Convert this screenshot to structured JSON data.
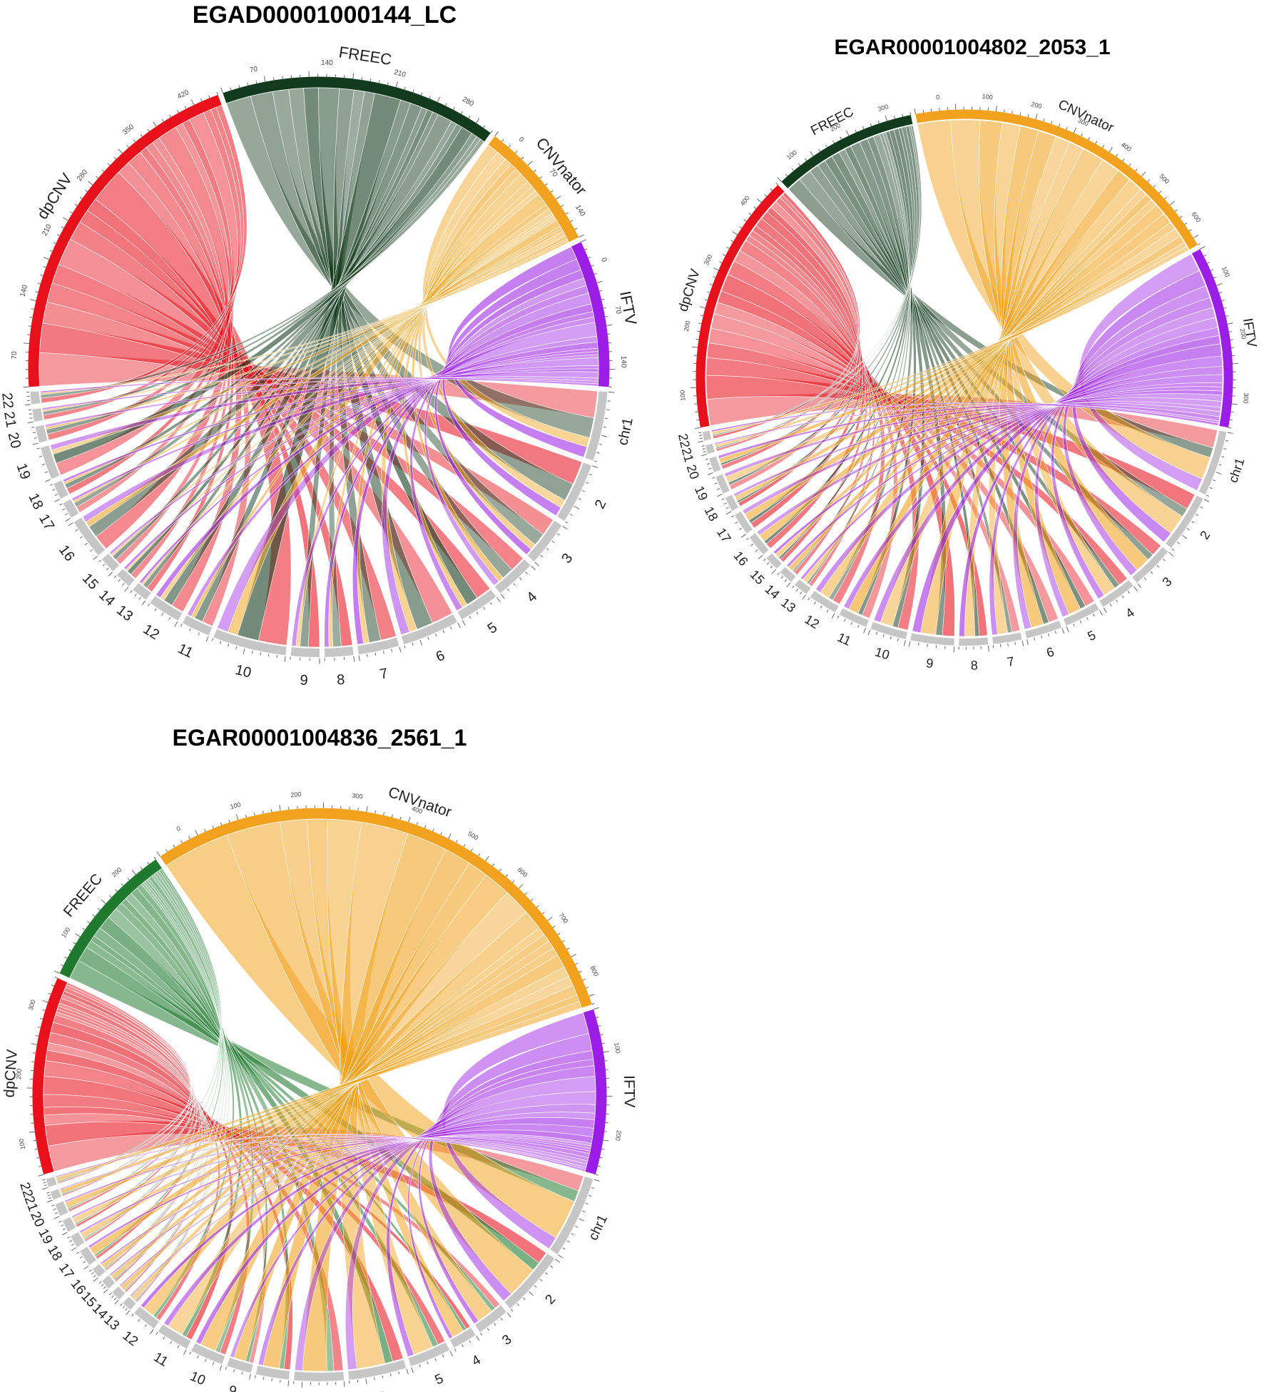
{
  "colors": {
    "dpCNV": "#e8101a",
    "FREEC": "#123a1c",
    "FREEC_light": "#1f7a2e",
    "CNVnator": "#f2a21c",
    "IFTV": "#9a1ee6",
    "chrom": "#c6c6c6"
  },
  "panels": [
    {
      "title": "EGAD00001000144_LC",
      "freec_shade": "dark",
      "tools": [
        {
          "name": "dpCNV",
          "size": 45
        },
        {
          "name": "FREEC",
          "size": 34
        },
        {
          "name": "CNVnator",
          "size": 16
        },
        {
          "name": "IFTV",
          "size": 18
        }
      ],
      "tool_ticks": [
        {
          "tool": "dpCNV",
          "labels": [
            "70",
            "140",
            "210",
            "280",
            "350",
            "420"
          ]
        },
        {
          "tool": "FREEC",
          "labels": [
            "70",
            "140",
            "210",
            "280"
          ]
        },
        {
          "tool": "CNVnator",
          "labels": [
            "0",
            "70",
            "140"
          ]
        },
        {
          "tool": "IFTV",
          "labels": [
            "0",
            "70",
            "140"
          ]
        }
      ],
      "chromosomes": [
        {
          "label": "chr1",
          "size": 8.5
        },
        {
          "label": "2",
          "size": 7.5
        },
        {
          "label": "3",
          "size": 5.5
        },
        {
          "label": "4",
          "size": 5
        },
        {
          "label": "5",
          "size": 5
        },
        {
          "label": "6",
          "size": 7
        },
        {
          "label": "7",
          "size": 5
        },
        {
          "label": "8",
          "size": 3.5
        },
        {
          "label": "9",
          "size": 3.5
        },
        {
          "label": "10",
          "size": 9
        },
        {
          "label": "11",
          "size": 3.5
        },
        {
          "label": "12",
          "size": 4
        },
        {
          "label": "13",
          "size": 2
        },
        {
          "label": "14",
          "size": 2
        },
        {
          "label": "15",
          "size": 2
        },
        {
          "label": "16",
          "size": 5
        },
        {
          "label": "17",
          "size": 2
        },
        {
          "label": "18",
          "size": 2
        },
        {
          "label": "19",
          "size": 4
        },
        {
          "label": "20",
          "size": 2
        },
        {
          "label": "21",
          "size": 1.5
        },
        {
          "label": "22",
          "size": 1.5
        }
      ]
    },
    {
      "title": "EGAR00001004802_2053_1",
      "freec_shade": "dark",
      "tools": [
        {
          "name": "dpCNV",
          "size": 36
        },
        {
          "name": "FREEC",
          "size": 20
        },
        {
          "name": "CNVnator",
          "size": 45
        },
        {
          "name": "IFTV",
          "size": 25
        }
      ],
      "tool_ticks": [
        {
          "tool": "dpCNV",
          "labels": [
            "100",
            "200",
            "300",
            "400"
          ]
        },
        {
          "tool": "FREEC",
          "labels": [
            "100",
            "200",
            "300"
          ]
        },
        {
          "tool": "CNVnator",
          "labels": [
            "0",
            "100",
            "200",
            "300",
            "400",
            "500",
            "600"
          ]
        },
        {
          "tool": "IFTV",
          "labels": [
            "100",
            "200",
            "300"
          ]
        }
      ],
      "chromosomes": [
        {
          "label": "chr1",
          "size": 9
        },
        {
          "label": "2",
          "size": 8
        },
        {
          "label": "3",
          "size": 6
        },
        {
          "label": "4",
          "size": 5
        },
        {
          "label": "5",
          "size": 5
        },
        {
          "label": "6",
          "size": 5
        },
        {
          "label": "7",
          "size": 4
        },
        {
          "label": "8",
          "size": 4
        },
        {
          "label": "9",
          "size": 6
        },
        {
          "label": "10",
          "size": 5
        },
        {
          "label": "11",
          "size": 4
        },
        {
          "label": "12",
          "size": 4
        },
        {
          "label": "13",
          "size": 2
        },
        {
          "label": "14",
          "size": 2
        },
        {
          "label": "15",
          "size": 2
        },
        {
          "label": "16",
          "size": 3
        },
        {
          "label": "17",
          "size": 3
        },
        {
          "label": "18",
          "size": 2
        },
        {
          "label": "19",
          "size": 2.5
        },
        {
          "label": "20",
          "size": 2
        },
        {
          "label": "21",
          "size": 1.2
        },
        {
          "label": "22",
          "size": 1.2
        }
      ]
    },
    {
      "title": "EGAR00001004836_2561_1",
      "freec_shade": "light",
      "tools": [
        {
          "name": "dpCNV",
          "size": 24
        },
        {
          "name": "FREEC",
          "size": 18
        },
        {
          "name": "CNVnator",
          "size": 63
        },
        {
          "name": "IFTV",
          "size": 20
        }
      ],
      "tool_ticks": [
        {
          "tool": "dpCNV",
          "labels": [
            "100",
            "200",
            "300"
          ]
        },
        {
          "tool": "FREEC",
          "labels": [
            "100",
            "200"
          ]
        },
        {
          "tool": "CNVnator",
          "labels": [
            "0",
            "100",
            "200",
            "300",
            "400",
            "500",
            "600",
            "700",
            "800"
          ]
        },
        {
          "tool": "IFTV",
          "labels": [
            "100",
            "200"
          ]
        }
      ],
      "chromosomes": [
        {
          "label": "chr1",
          "size": 10
        },
        {
          "label": "2",
          "size": 8
        },
        {
          "label": "3",
          "size": 4
        },
        {
          "label": "4",
          "size": 3
        },
        {
          "label": "5",
          "size": 5
        },
        {
          "label": "6",
          "size": 7
        },
        {
          "label": "7",
          "size": 6
        },
        {
          "label": "8",
          "size": 4
        },
        {
          "label": "9",
          "size": 3
        },
        {
          "label": "10",
          "size": 4
        },
        {
          "label": "11",
          "size": 4
        },
        {
          "label": "12",
          "size": 3
        },
        {
          "label": "13",
          "size": 1.2
        },
        {
          "label": "14",
          "size": 1.2
        },
        {
          "label": "15",
          "size": 1.2
        },
        {
          "label": "16",
          "size": 1.2
        },
        {
          "label": "17",
          "size": 2
        },
        {
          "label": "18",
          "size": 1.5
        },
        {
          "label": "19",
          "size": 1.5
        },
        {
          "label": "20",
          "size": 1.5
        },
        {
          "label": "21",
          "size": 1
        },
        {
          "label": "22",
          "size": 1
        }
      ]
    }
  ]
}
